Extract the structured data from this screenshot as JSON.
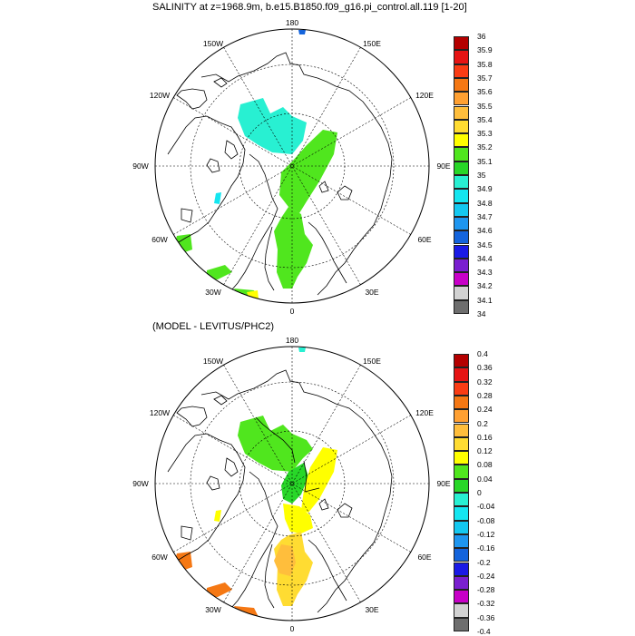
{
  "panels": [
    {
      "title": "SALINITY at z=1968.9m, b.e15.B1850.f09_g16.pi_control.all.119 [1-20]",
      "colorbar": {
        "colors": [
          "#6e6e6e",
          "#d2d2d2",
          "#c800c8",
          "#7a1fd0",
          "#1a1ae6",
          "#1464dc",
          "#1e96f0",
          "#14c8f0",
          "#14e6f0",
          "#28f0d2",
          "#28d728",
          "#50e61e",
          "#ffff00",
          "#ffdc32",
          "#ffbe3c",
          "#ffa032",
          "#f57814",
          "#fa3c14",
          "#e61414",
          "#b40000"
        ],
        "labels": [
          "34",
          "34.1",
          "34.2",
          "34.3",
          "34.4",
          "34.5",
          "34.6",
          "34.7",
          "34.8",
          "34.9",
          "35",
          "35.1",
          "35.2",
          "35.3",
          "35.4",
          "35.5",
          "35.6",
          "35.7",
          "35.8",
          "35.9",
          "36"
        ]
      }
    },
    {
      "title": "(MODEL - LEVITUS/PHC2)",
      "colorbar": {
        "colors": [
          "#6e6e6e",
          "#d2d2d2",
          "#c800c8",
          "#7a1fd0",
          "#1a1ae6",
          "#1464dc",
          "#1e96f0",
          "#14c8f0",
          "#14e6f0",
          "#28f0d2",
          "#28d728",
          "#50e61e",
          "#ffff00",
          "#ffdc32",
          "#ffbe3c",
          "#ffa032",
          "#f57814",
          "#fa3c14",
          "#e61414",
          "#b40000"
        ],
        "labels": [
          "-0.4",
          "-0.36",
          "-0.32",
          "-0.28",
          "-0.24",
          "-0.2",
          "-0.16",
          "-0.12",
          "-0.08",
          "-0.04",
          "0",
          "0.04",
          "0.08",
          "0.12",
          "0.16",
          "0.2",
          "0.24",
          "0.28",
          "0.32",
          "0.36",
          "0.4"
        ]
      }
    }
  ],
  "longitude_labels": {
    "top": "180",
    "upper_left": "150W",
    "upper_right": "150E",
    "left_upper": "120W",
    "right_upper": "120E",
    "left": "90W",
    "right": "90E",
    "left_lower": "60W",
    "right_lower": "60E",
    "lower_left": "30W",
    "lower_right": "30E",
    "bottom": "0"
  },
  "map_regions": {
    "top": [
      {
        "name": "canada-basin-patch",
        "color": "#28f0d2"
      },
      {
        "name": "eurasian-basin-patch",
        "color": "#50e61e"
      },
      {
        "name": "nordic-seas-patch",
        "color": "#50e61e"
      },
      {
        "name": "labrador-patch",
        "color": "#50e61e"
      },
      {
        "name": "irminger-patch",
        "color": "#50e61e"
      },
      {
        "name": "baffin-patch",
        "color": "#14e6f0"
      },
      {
        "name": "bering-patch",
        "color": "#1464dc"
      }
    ],
    "bottom": [
      {
        "name": "canada-basin-patch",
        "color": "#50e61e"
      },
      {
        "name": "lomonosov-patch",
        "color": "#28d728"
      },
      {
        "name": "eurasian-basin-patch",
        "color": "#ffff00"
      },
      {
        "name": "nordic-seas-patch",
        "color": "#ffdc32"
      },
      {
        "name": "greenland-sea-patch",
        "color": "#ffbe3c"
      },
      {
        "name": "labrador-patch",
        "color": "#f57814"
      },
      {
        "name": "irminger-patch",
        "color": "#f57814"
      },
      {
        "name": "baffin-patch",
        "color": "#ffff00"
      },
      {
        "name": "bering-patch",
        "color": "#28f0d2"
      }
    ]
  }
}
